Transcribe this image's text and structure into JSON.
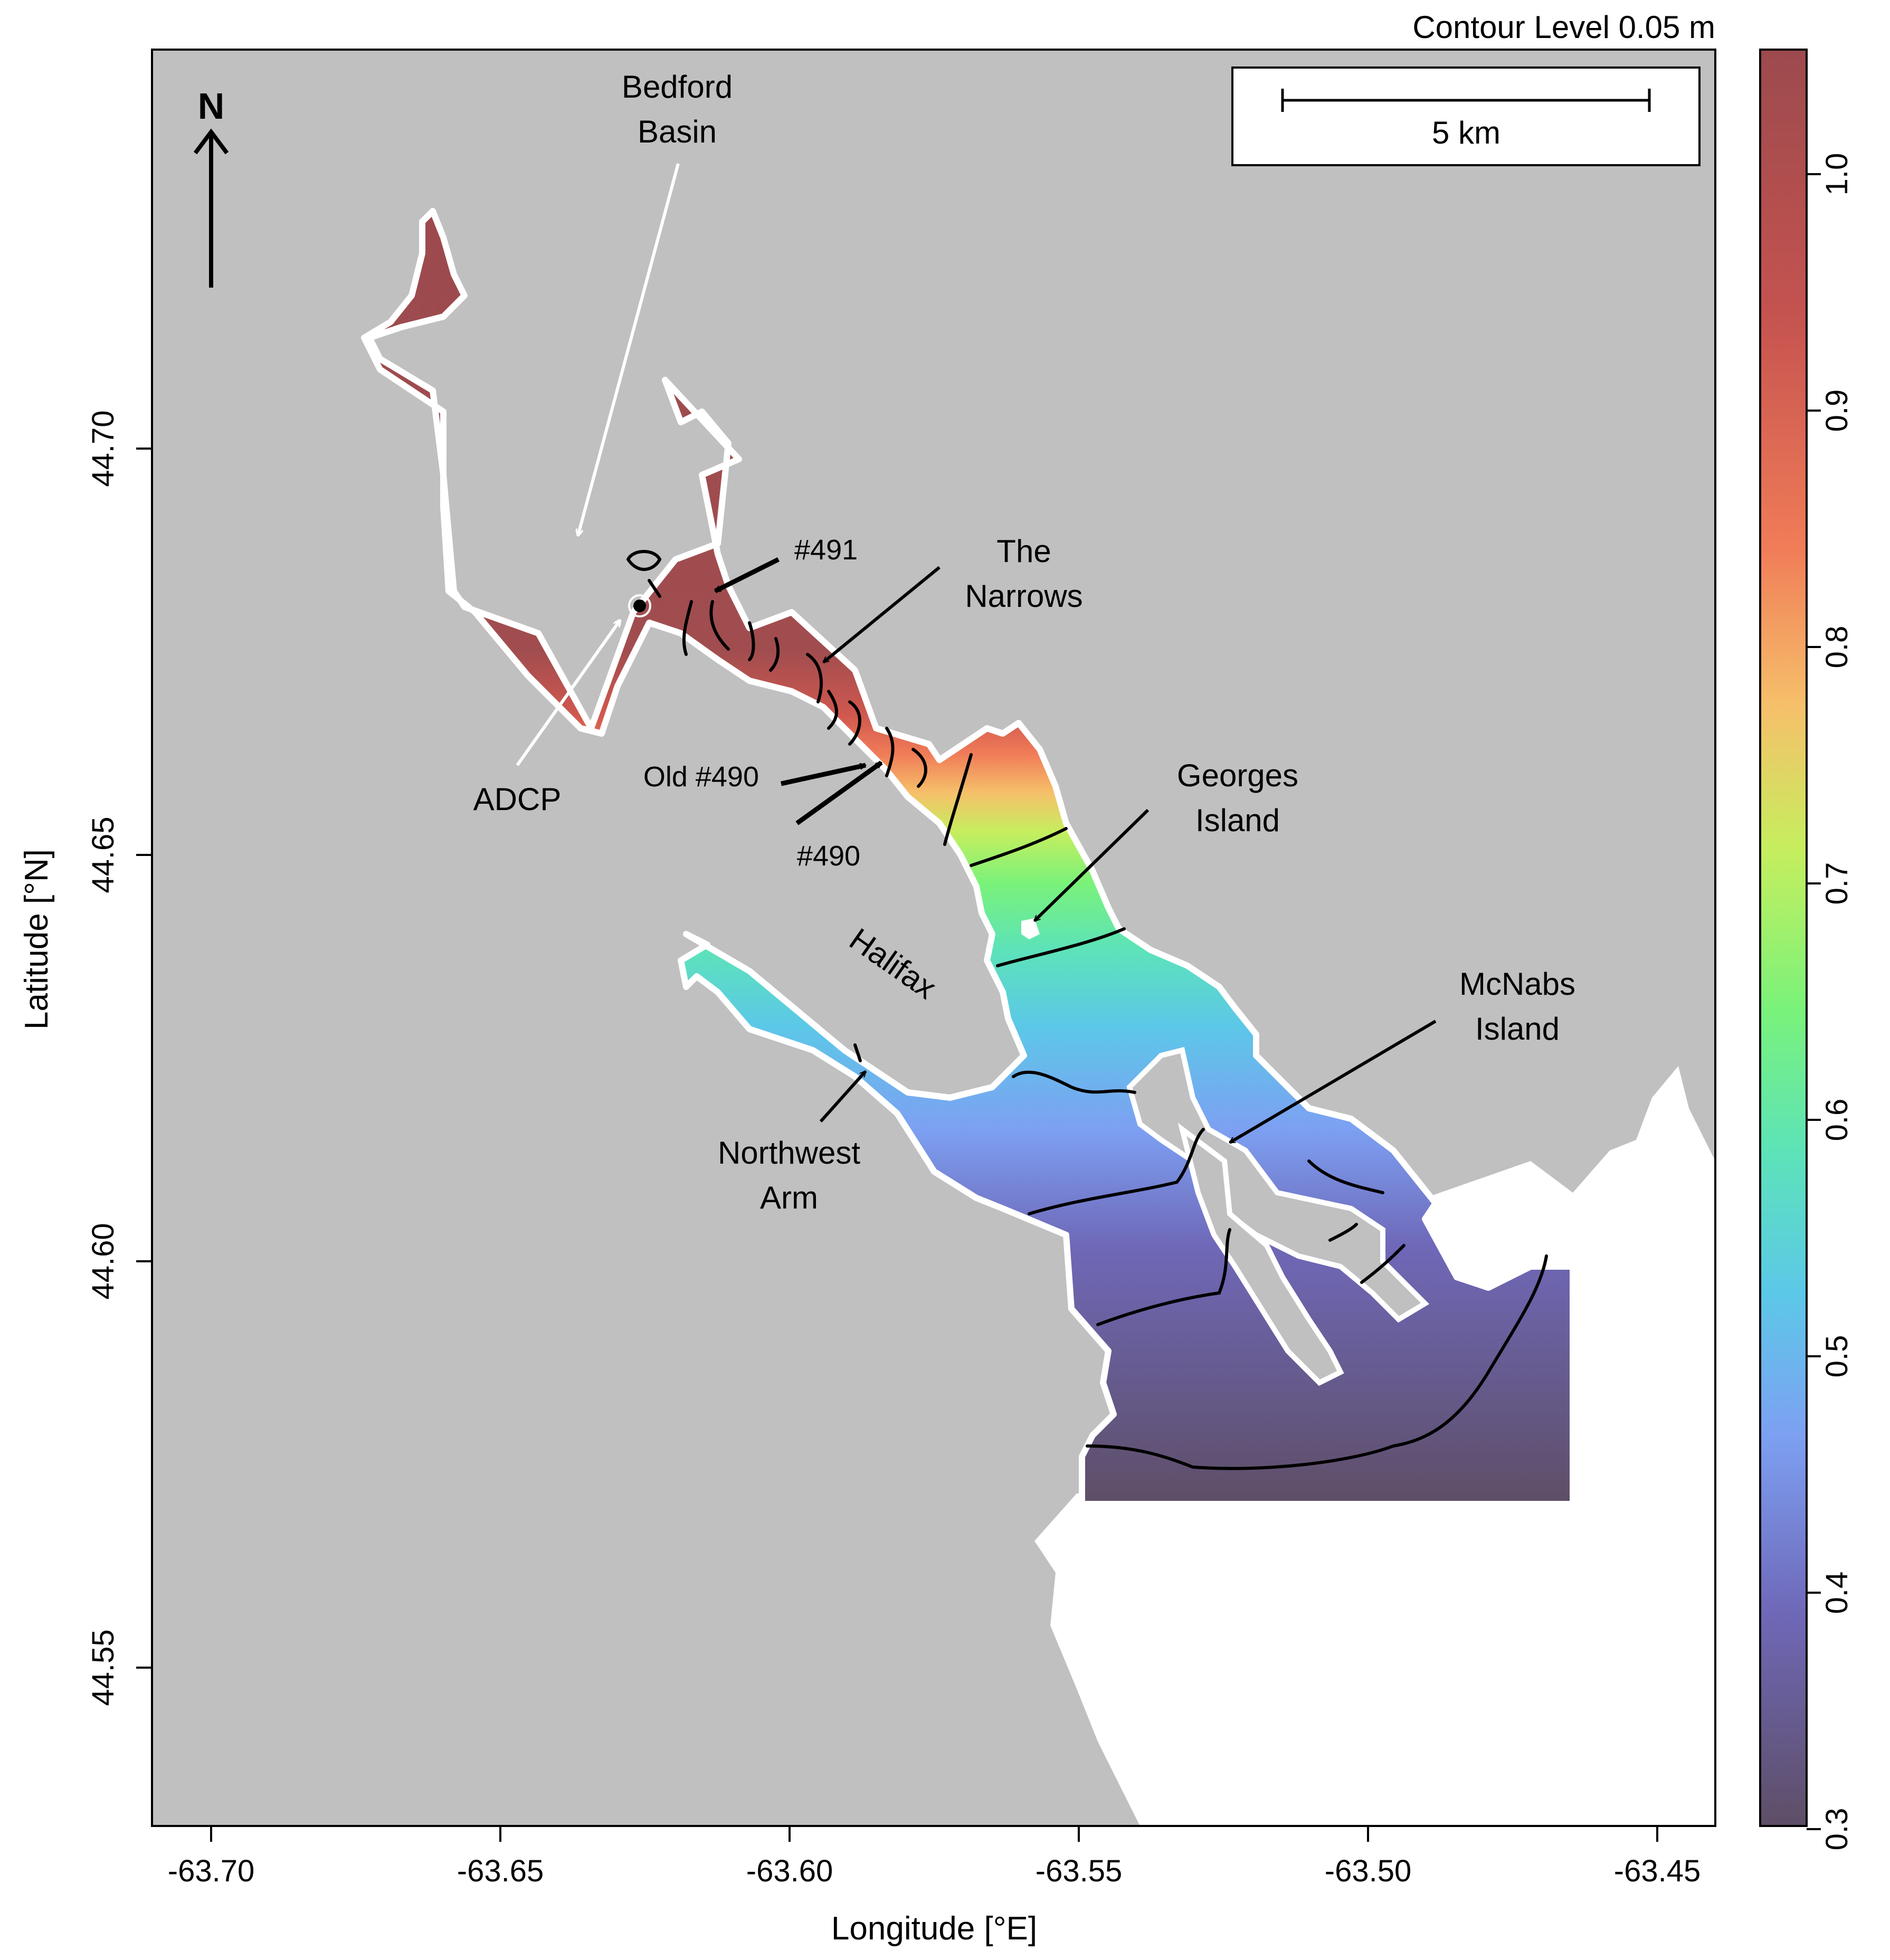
{
  "map": {
    "contour_label": "Contour Level 0.05 m",
    "north_label": "N",
    "scale_bar_label": "5 km",
    "xlabel": "Longitude [°E]",
    "ylabel": "Latitude [°N]",
    "x_ticks": [
      "-63.70",
      "-63.65",
      "-63.60",
      "-63.55",
      "-63.50",
      "-63.45"
    ],
    "y_ticks": [
      "44.70",
      "44.65",
      "44.60",
      "44.55"
    ],
    "colorbar_ticks": [
      "1.0",
      "0.9",
      "0.8",
      "0.7",
      "0.6",
      "0.5",
      "0.4",
      "0.3"
    ],
    "colors": {
      "land": "#c0c0c0",
      "ocean_outside": "#ffffff",
      "colorbar_stops": [
        "#5e4e66",
        "#6f68b8",
        "#7da0f2",
        "#5cc8e8",
        "#5de3b8",
        "#7af27a",
        "#c6ee5e",
        "#f6c06a",
        "#f07c58",
        "#c5534f",
        "#9c4a4e"
      ]
    }
  },
  "annotations": {
    "bedford_basin": "Bedford Basin",
    "adcp": "ADCP",
    "station_491": "#491",
    "the_narrows": "The Narrows",
    "old_490": "Old #490",
    "station_490": "#490",
    "georges_island": "Georges Island",
    "halifax": "Halifax",
    "mcnabs_island": "McNabs Island",
    "northwest_arm": "Northwest Arm"
  }
}
